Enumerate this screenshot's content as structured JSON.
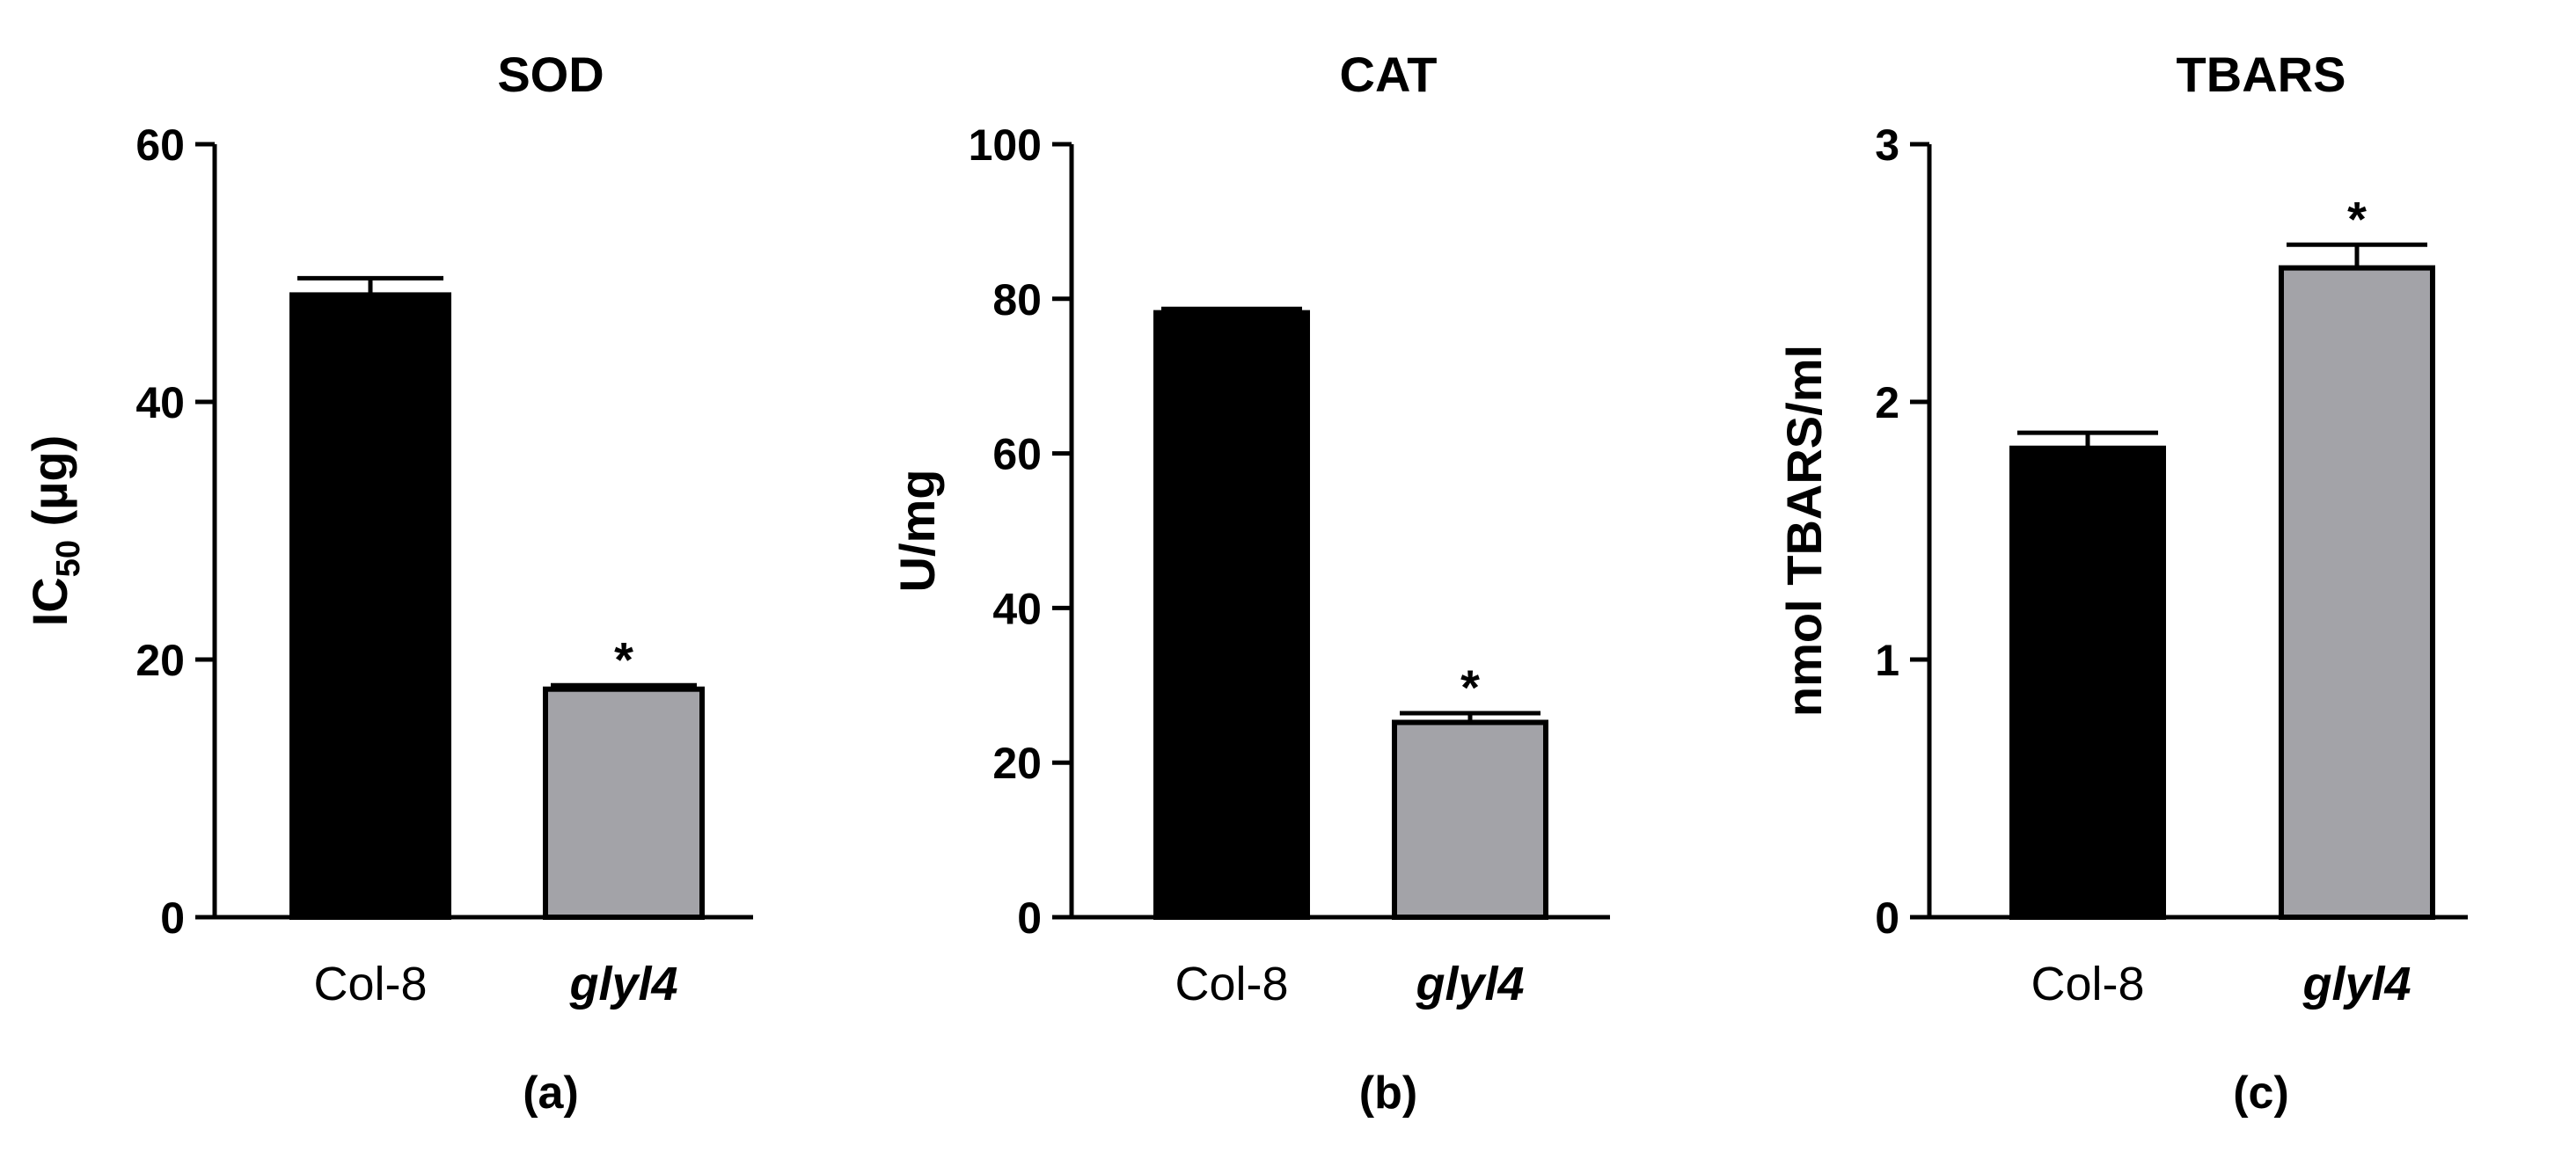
{
  "chart_data": [
    {
      "type": "bar",
      "title": "SOD",
      "ylabel_main": "IC",
      "ylabel_sub": "50",
      "ylabel_rest": " (µg)",
      "panel_label": "(a)",
      "categories": [
        "Col-8",
        "glyl4"
      ],
      "category_italic": [
        false,
        true
      ],
      "values": [
        48.3,
        17.7
      ],
      "errors": [
        1.3,
        0.3
      ],
      "significance": [
        "",
        "*"
      ],
      "bar_colors": [
        "#000000",
        "#a3a3a8"
      ],
      "ylim": [
        0,
        60
      ],
      "yticks": [
        0,
        20,
        40,
        60
      ],
      "ytick_labels": [
        "0",
        "20",
        "40",
        "60"
      ]
    },
    {
      "type": "bar",
      "title": "CAT",
      "ylabel": "U/mg",
      "panel_label": "(b)",
      "categories": [
        "Col-8",
        "glyl4"
      ],
      "category_italic": [
        false,
        true
      ],
      "values": [
        78.2,
        25.2
      ],
      "errors": [
        0.5,
        1.2
      ],
      "significance": [
        "",
        "*"
      ],
      "bar_colors": [
        "#000000",
        "#a3a3a8"
      ],
      "ylim": [
        0,
        100
      ],
      "yticks": [
        0,
        20,
        40,
        60,
        80,
        100
      ],
      "ytick_labels": [
        "0",
        "20",
        "40",
        "60",
        "80",
        "100"
      ]
    },
    {
      "type": "bar",
      "title": "TBARS",
      "ylabel": "nmol TBARS/ml",
      "panel_label": "(c)",
      "categories": [
        "Col-8",
        "glyl4"
      ],
      "category_italic": [
        false,
        true
      ],
      "values": [
        1.82,
        2.52
      ],
      "errors": [
        0.06,
        0.09
      ],
      "significance": [
        "",
        "*"
      ],
      "bar_colors": [
        "#000000",
        "#a3a3a8"
      ],
      "ylim": [
        0,
        3
      ],
      "yticks": [
        0,
        1,
        2,
        3
      ],
      "ytick_labels": [
        "0",
        "1",
        "2",
        "3"
      ]
    }
  ]
}
